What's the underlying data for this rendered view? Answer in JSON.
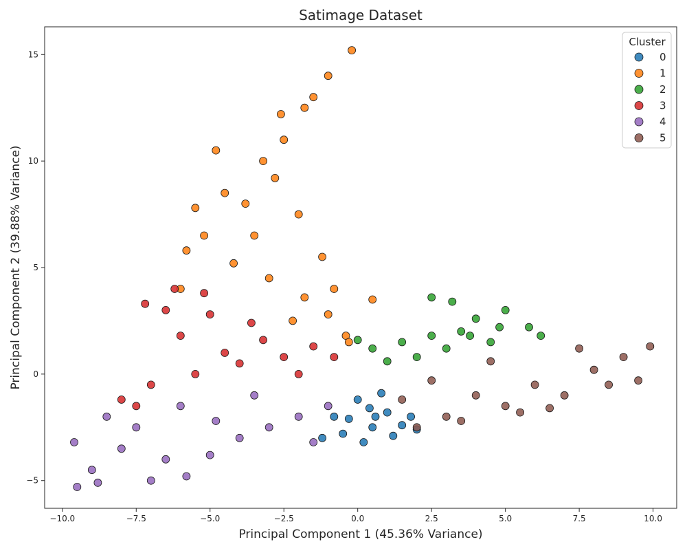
{
  "chart_data": {
    "type": "scatter",
    "title": "Satimage Dataset",
    "xlabel": "Principal Component 1 (45.36% Variance)",
    "ylabel": "Principal Component 2 (39.88% Variance)",
    "xlim": [
      -10.6,
      10.8
    ],
    "ylim": [
      -6.3,
      16.3
    ],
    "x_ticks": [
      -10.0,
      -7.5,
      -5.0,
      -2.5,
      0.0,
      2.5,
      5.0,
      7.5,
      10.0
    ],
    "x_tick_labels": [
      "−10.0",
      "−7.5",
      "−5.0",
      "−2.5",
      "0.0",
      "2.5",
      "5.0",
      "7.5",
      "10.0"
    ],
    "y_ticks": [
      -5,
      0,
      5,
      10,
      15
    ],
    "y_tick_labels": [
      "−5",
      "0",
      "5",
      "10",
      "15"
    ],
    "grid": false,
    "legend": {
      "title": "Cluster",
      "placement": "top-right"
    },
    "series": [
      {
        "name": "0",
        "color": "#1f77b4",
        "points": [
          [
            0.5,
            -2.5
          ],
          [
            -0.5,
            -2.8
          ],
          [
            1.5,
            -2.4
          ],
          [
            0.0,
            -1.2
          ],
          [
            1.0,
            -1.8
          ],
          [
            -0.8,
            -2.0
          ],
          [
            0.2,
            -3.2
          ],
          [
            1.8,
            -2.0
          ],
          [
            -1.2,
            -3.0
          ],
          [
            0.8,
            -0.9
          ],
          [
            0.4,
            -1.6
          ],
          [
            1.2,
            -2.9
          ],
          [
            -0.3,
            -2.1
          ],
          [
            2.0,
            -2.6
          ],
          [
            0.6,
            -2.0
          ]
        ]
      },
      {
        "name": "1",
        "color": "#ff7f0e",
        "points": [
          [
            -0.2,
            15.2
          ],
          [
            -1.0,
            14.0
          ],
          [
            -1.8,
            12.5
          ],
          [
            -2.5,
            11.0
          ],
          [
            -3.2,
            10.0
          ],
          [
            -4.5,
            8.5
          ],
          [
            -5.5,
            7.8
          ],
          [
            -3.8,
            8.0
          ],
          [
            -2.8,
            9.2
          ],
          [
            -2.0,
            7.5
          ],
          [
            -1.2,
            5.5
          ],
          [
            -3.5,
            6.5
          ],
          [
            -4.2,
            5.2
          ],
          [
            -5.8,
            5.8
          ],
          [
            -3.0,
            4.5
          ],
          [
            -1.8,
            3.6
          ],
          [
            -0.8,
            4.0
          ],
          [
            -2.2,
            2.5
          ],
          [
            -1.0,
            2.8
          ],
          [
            -0.4,
            1.8
          ],
          [
            0.5,
            3.5
          ],
          [
            -4.8,
            10.5
          ],
          [
            -1.5,
            13.0
          ],
          [
            -5.2,
            6.5
          ],
          [
            -2.6,
            12.2
          ],
          [
            -0.3,
            1.5
          ],
          [
            -6.0,
            4.0
          ]
        ]
      },
      {
        "name": "2",
        "color": "#2ca02c",
        "points": [
          [
            5.0,
            3.0
          ],
          [
            4.0,
            2.6
          ],
          [
            3.5,
            2.0
          ],
          [
            2.5,
            1.8
          ],
          [
            1.5,
            1.5
          ],
          [
            0.5,
            1.2
          ],
          [
            0.0,
            1.6
          ],
          [
            4.5,
            1.5
          ],
          [
            5.8,
            2.2
          ],
          [
            2.0,
            0.8
          ],
          [
            3.0,
            1.2
          ],
          [
            6.2,
            1.8
          ],
          [
            2.5,
            3.6
          ],
          [
            3.2,
            3.4
          ],
          [
            1.0,
            0.6
          ],
          [
            4.8,
            2.2
          ],
          [
            3.8,
            1.8
          ]
        ]
      },
      {
        "name": "3",
        "color": "#d62728",
        "points": [
          [
            -2.5,
            0.8
          ],
          [
            -4.0,
            0.5
          ],
          [
            -5.5,
            0.0
          ],
          [
            -7.0,
            -0.5
          ],
          [
            -8.0,
            -1.2
          ],
          [
            -1.5,
            1.3
          ],
          [
            -3.2,
            1.6
          ],
          [
            -6.0,
            1.8
          ],
          [
            -5.0,
            2.8
          ],
          [
            -6.5,
            3.0
          ],
          [
            -7.2,
            3.3
          ],
          [
            -4.5,
            1.0
          ],
          [
            -2.0,
            0.0
          ],
          [
            -0.8,
            0.8
          ],
          [
            -7.5,
            -1.5
          ],
          [
            -5.2,
            3.8
          ],
          [
            -6.2,
            4.0
          ],
          [
            -3.6,
            2.4
          ]
        ]
      },
      {
        "name": "4",
        "color": "#9467bd",
        "points": [
          [
            -3.0,
            -2.5
          ],
          [
            -5.0,
            -3.8
          ],
          [
            -6.5,
            -4.0
          ],
          [
            -8.0,
            -3.5
          ],
          [
            -9.0,
            -4.5
          ],
          [
            -9.5,
            -5.3
          ],
          [
            -4.0,
            -3.0
          ],
          [
            -2.0,
            -2.0
          ],
          [
            -1.0,
            -1.5
          ],
          [
            -6.0,
            -1.5
          ],
          [
            -7.5,
            -2.5
          ],
          [
            -8.5,
            -2.0
          ],
          [
            -3.5,
            -1.0
          ],
          [
            -5.8,
            -4.8
          ],
          [
            -7.0,
            -5.0
          ],
          [
            -9.6,
            -3.2
          ],
          [
            -4.8,
            -2.2
          ],
          [
            -1.5,
            -3.2
          ],
          [
            -8.8,
            -5.1
          ]
        ]
      },
      {
        "name": "5",
        "color": "#8c564b",
        "points": [
          [
            3.0,
            -2.0
          ],
          [
            5.0,
            -1.5
          ],
          [
            7.0,
            -1.0
          ],
          [
            8.5,
            -0.5
          ],
          [
            9.9,
            1.3
          ],
          [
            2.0,
            -2.5
          ],
          [
            4.0,
            -1.0
          ],
          [
            6.0,
            -0.5
          ],
          [
            7.5,
            1.2
          ],
          [
            9.5,
            -0.3
          ],
          [
            2.5,
            -0.3
          ],
          [
            3.5,
            -2.2
          ],
          [
            5.5,
            -1.8
          ],
          [
            6.5,
            -1.6
          ],
          [
            8.0,
            0.2
          ],
          [
            4.5,
            0.6
          ],
          [
            9.0,
            0.8
          ],
          [
            1.5,
            -1.2
          ]
        ]
      }
    ]
  }
}
